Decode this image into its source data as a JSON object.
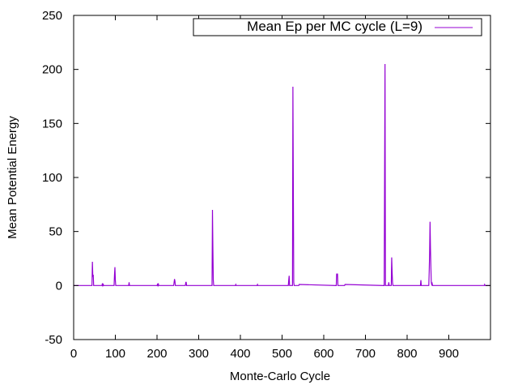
{
  "chart_data": {
    "type": "line",
    "xlabel": "Monte-Carlo Cycle",
    "ylabel": "Mean Potential Energy",
    "xlim": [
      0,
      1000
    ],
    "ylim": [
      -50,
      250
    ],
    "xticks": [
      0,
      100,
      200,
      300,
      400,
      500,
      600,
      700,
      800,
      900
    ],
    "yticks": [
      -50,
      0,
      50,
      100,
      150,
      200,
      250
    ],
    "grid": false,
    "legend_position": "top-right",
    "series": [
      {
        "name": "Mean Ep per MC cycle (L=9)",
        "color": "#9400d3",
        "x": [
          0,
          44,
          45,
          46,
          47,
          48,
          49,
          68,
          69,
          70,
          71,
          72,
          97,
          98,
          99,
          100,
          101,
          132,
          133,
          134,
          200,
          201,
          202,
          203,
          204,
          240,
          241,
          242,
          243,
          244,
          268,
          269,
          270,
          271,
          332,
          333,
          334,
          335,
          336,
          388,
          389,
          390,
          440,
          441,
          442,
          515,
          516,
          517,
          518,
          525,
          526,
          527,
          528,
          529,
          540,
          541,
          630,
          631,
          632,
          633,
          634,
          650,
          651,
          745,
          746,
          747,
          748,
          755,
          756,
          757,
          762,
          763,
          764,
          765,
          766,
          832,
          833,
          834,
          852,
          853,
          854,
          855,
          856,
          857,
          858,
          859,
          860,
          861,
          985,
          986,
          987,
          1000
        ],
        "y": [
          0,
          0,
          22,
          8,
          10,
          0,
          0,
          0,
          2,
          0,
          1,
          0,
          0,
          10,
          17,
          5,
          0,
          0,
          3,
          0,
          0,
          1,
          0,
          2,
          0,
          0,
          3,
          6,
          4,
          0,
          0,
          3,
          3,
          0,
          0,
          70,
          35,
          5,
          0,
          0,
          1,
          0,
          0,
          1,
          0,
          0,
          5,
          9,
          0,
          0,
          184,
          92,
          3,
          0,
          0,
          1,
          0,
          11,
          10,
          11,
          0,
          0,
          1,
          0,
          102,
          205,
          0,
          0,
          3,
          0,
          0,
          26,
          13,
          3,
          0,
          0,
          5,
          0,
          0,
          13,
          30,
          59,
          35,
          17,
          3,
          1,
          2,
          0,
          0,
          1,
          0,
          0
        ]
      }
    ]
  }
}
